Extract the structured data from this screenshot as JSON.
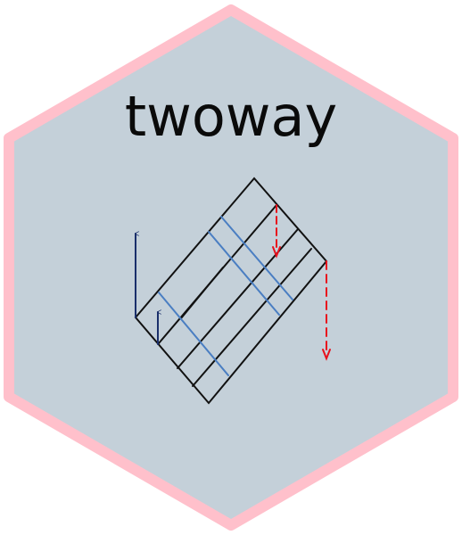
{
  "logo": {
    "title": "twoway",
    "colors": {
      "fill": "#c4d0d9",
      "border": "#ffc0cb",
      "lines": "#000000",
      "sweeps": "#4a7ec2",
      "up_arrows": "#1a2f6b",
      "down_arrows": "#e8101c"
    },
    "icons": [
      "up-arrow-icon",
      "dashed-down-arrow-icon"
    ]
  }
}
